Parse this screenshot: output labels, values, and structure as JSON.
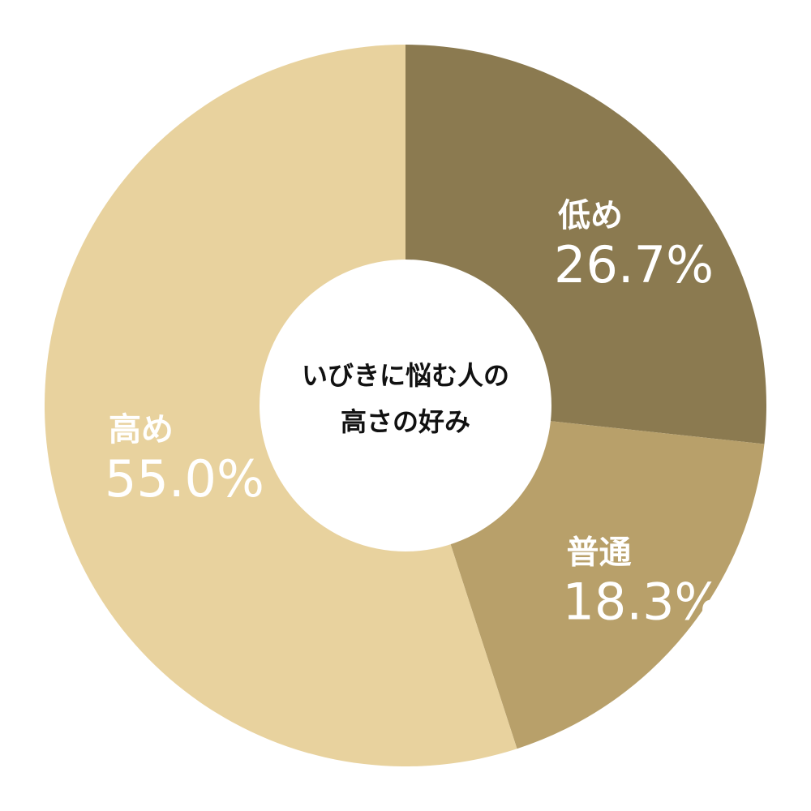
{
  "chart_data": {
    "type": "donut",
    "title": [
      "いびきに悩む人の",
      "高さの好み"
    ],
    "categories": [
      "低め",
      "普通",
      "高め"
    ],
    "values": [
      26.7,
      18.3,
      55.0
    ],
    "value_labels": [
      "26.7%",
      "18.3%",
      "55.0%"
    ],
    "colors": [
      "#8b7a50",
      "#b8a06a",
      "#e8d29e"
    ]
  }
}
